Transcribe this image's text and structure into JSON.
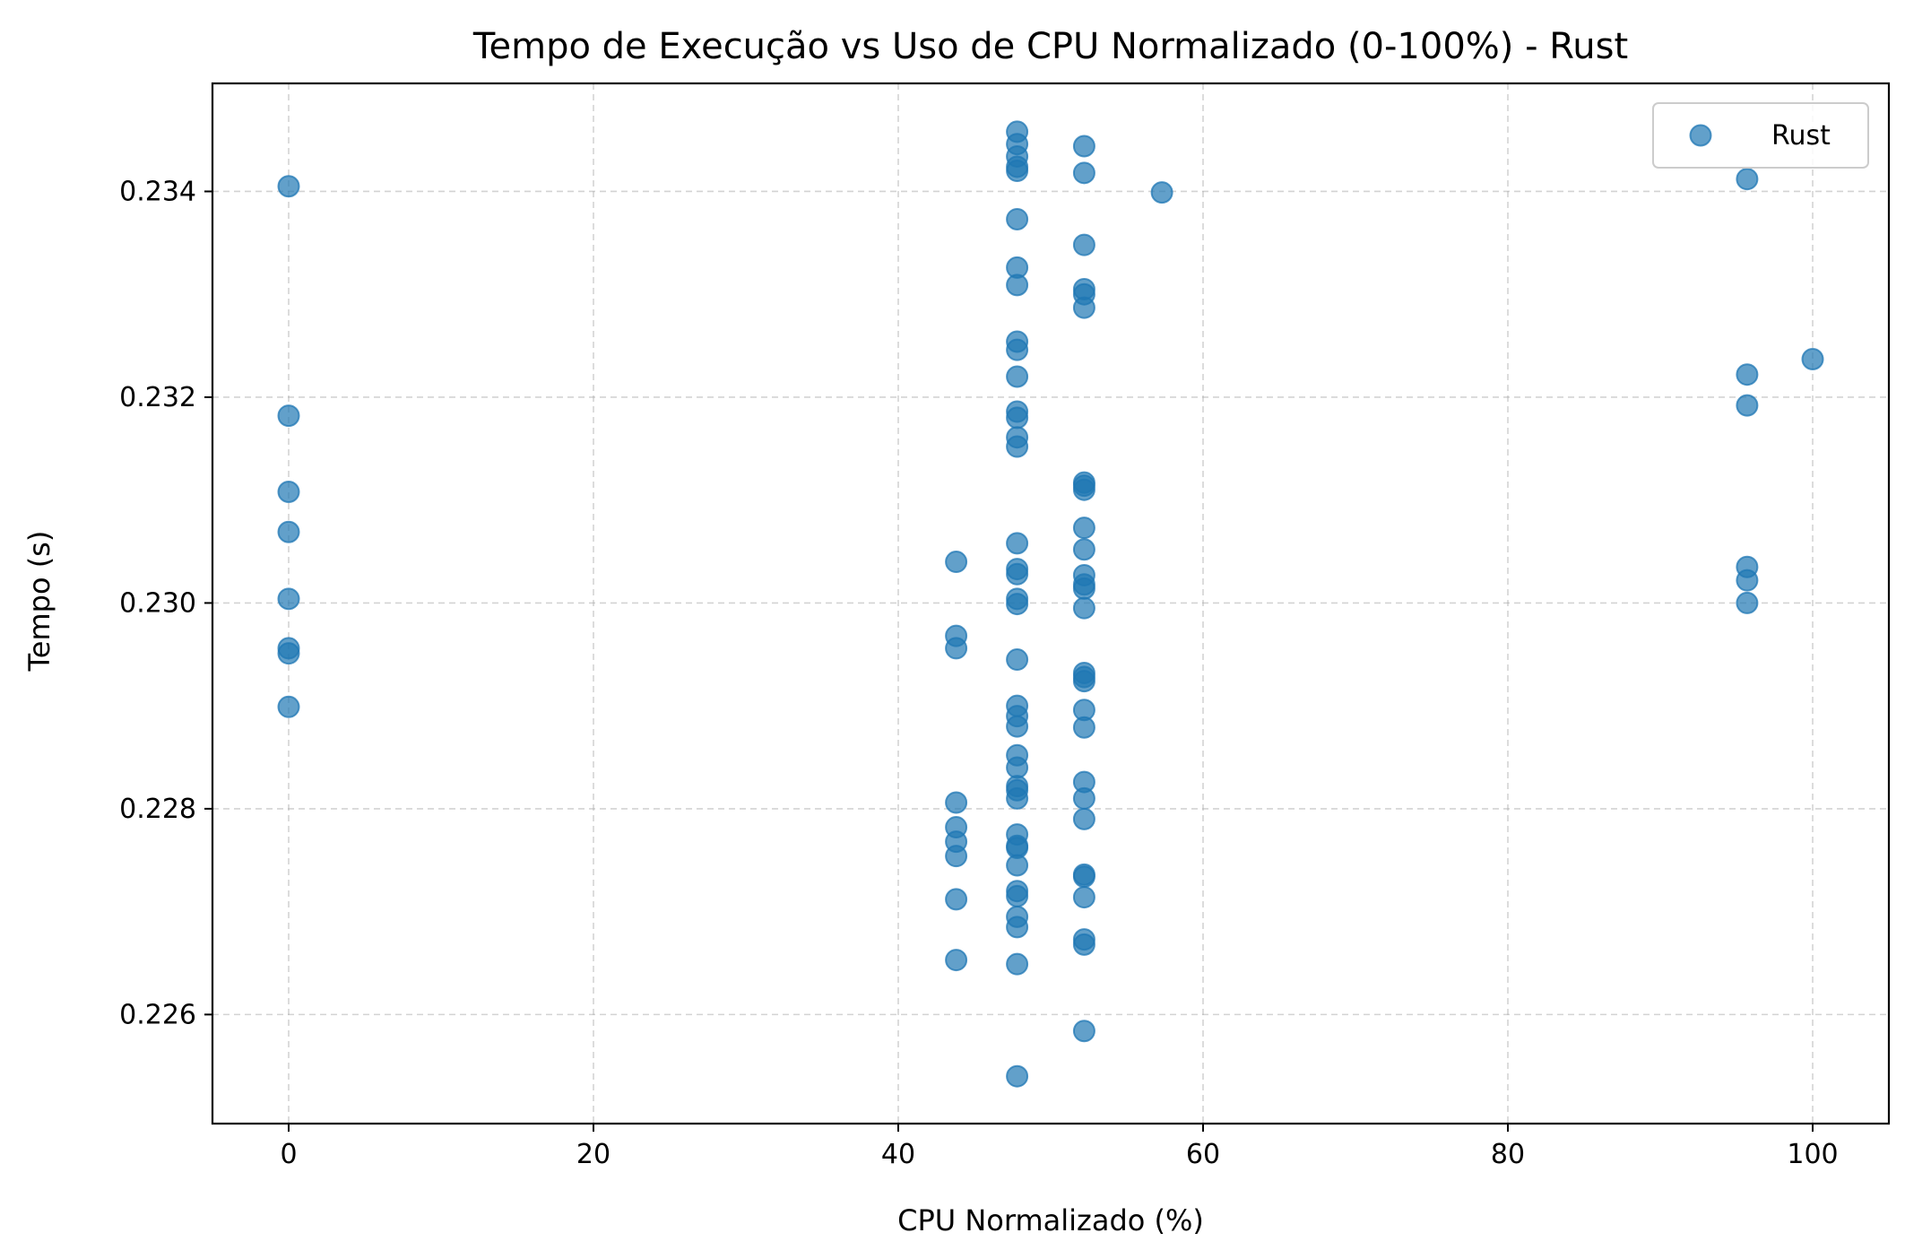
{
  "chart_data": {
    "type": "scatter",
    "title": "Tempo de Execução vs Uso de CPU Normalizado (0-100%) - Rust",
    "xlabel": "CPU Normalizado (%)",
    "ylabel": "Tempo (s)",
    "xlim": [
      -5,
      105
    ],
    "ylim": [
      0.22494,
      0.23505
    ],
    "xticks": [
      0,
      20,
      40,
      60,
      80,
      100
    ],
    "xtick_labels": [
      "0",
      "20",
      "40",
      "60",
      "80",
      "100"
    ],
    "yticks": [
      0.226,
      0.228,
      0.23,
      0.232,
      0.234
    ],
    "ytick_labels": [
      "0.226",
      "0.228",
      "0.230",
      "0.232",
      "0.234"
    ],
    "grid": true,
    "legend_position": "top-right",
    "marker_color": "#1f77b4",
    "series": [
      {
        "name": "Rust",
        "points": [
          [
            0,
            0.23405
          ],
          [
            0,
            0.23182
          ],
          [
            0,
            0.23108
          ],
          [
            0,
            0.23069
          ],
          [
            0,
            0.23004
          ],
          [
            0,
            0.22956
          ],
          [
            0,
            0.22951
          ],
          [
            0,
            0.22899
          ],
          [
            43.8,
            0.2304
          ],
          [
            43.8,
            0.22968
          ],
          [
            43.8,
            0.22956
          ],
          [
            43.8,
            0.22806
          ],
          [
            43.8,
            0.22782
          ],
          [
            43.8,
            0.22768
          ],
          [
            43.8,
            0.22754
          ],
          [
            43.8,
            0.22712
          ],
          [
            43.8,
            0.22653
          ],
          [
            47.8,
            0.23458
          ],
          [
            47.8,
            0.23446
          ],
          [
            47.8,
            0.23434
          ],
          [
            47.8,
            0.23424
          ],
          [
            47.8,
            0.2342
          ],
          [
            47.8,
            0.23373
          ],
          [
            47.8,
            0.23326
          ],
          [
            47.8,
            0.23309
          ],
          [
            47.8,
            0.23254
          ],
          [
            47.8,
            0.23246
          ],
          [
            47.8,
            0.2322
          ],
          [
            47.8,
            0.23186
          ],
          [
            47.8,
            0.2318
          ],
          [
            47.8,
            0.23161
          ],
          [
            47.8,
            0.23152
          ],
          [
            47.8,
            0.23058
          ],
          [
            47.8,
            0.23033
          ],
          [
            47.8,
            0.23028
          ],
          [
            47.8,
            0.23004
          ],
          [
            47.8,
            0.22999
          ],
          [
            47.8,
            0.22945
          ],
          [
            47.8,
            0.229
          ],
          [
            47.8,
            0.2289
          ],
          [
            47.8,
            0.2288
          ],
          [
            47.8,
            0.22852
          ],
          [
            47.8,
            0.2284
          ],
          [
            47.8,
            0.22822
          ],
          [
            47.8,
            0.22818
          ],
          [
            47.8,
            0.2281
          ],
          [
            47.8,
            0.22775
          ],
          [
            47.8,
            0.22764
          ],
          [
            47.8,
            0.22762
          ],
          [
            47.8,
            0.22745
          ],
          [
            47.8,
            0.2272
          ],
          [
            47.8,
            0.22715
          ],
          [
            47.8,
            0.22695
          ],
          [
            47.8,
            0.22685
          ],
          [
            47.8,
            0.22649
          ],
          [
            47.8,
            0.2254
          ],
          [
            52.2,
            0.23444
          ],
          [
            52.2,
            0.23418
          ],
          [
            52.2,
            0.23348
          ],
          [
            52.2,
            0.23305
          ],
          [
            52.2,
            0.233
          ],
          [
            52.2,
            0.23287
          ],
          [
            52.2,
            0.23117
          ],
          [
            52.2,
            0.23114
          ],
          [
            52.2,
            0.2311
          ],
          [
            52.2,
            0.23073
          ],
          [
            52.2,
            0.23052
          ],
          [
            52.2,
            0.23027
          ],
          [
            52.2,
            0.23018
          ],
          [
            52.2,
            0.23014
          ],
          [
            52.2,
            0.22995
          ],
          [
            52.2,
            0.22932
          ],
          [
            52.2,
            0.22928
          ],
          [
            52.2,
            0.22924
          ],
          [
            52.2,
            0.22896
          ],
          [
            52.2,
            0.22879
          ],
          [
            52.2,
            0.22826
          ],
          [
            52.2,
            0.2281
          ],
          [
            52.2,
            0.2279
          ],
          [
            52.2,
            0.22736
          ],
          [
            52.2,
            0.22734
          ],
          [
            52.2,
            0.22714
          ],
          [
            52.2,
            0.22673
          ],
          [
            52.2,
            0.22668
          ],
          [
            52.2,
            0.22584
          ],
          [
            57.3,
            0.23399
          ],
          [
            95.7,
            0.23412
          ],
          [
            95.7,
            0.23222
          ],
          [
            95.7,
            0.23192
          ],
          [
            95.7,
            0.23035
          ],
          [
            95.7,
            0.23022
          ],
          [
            95.7,
            0.23
          ],
          [
            100,
            0.23237
          ]
        ]
      }
    ]
  }
}
